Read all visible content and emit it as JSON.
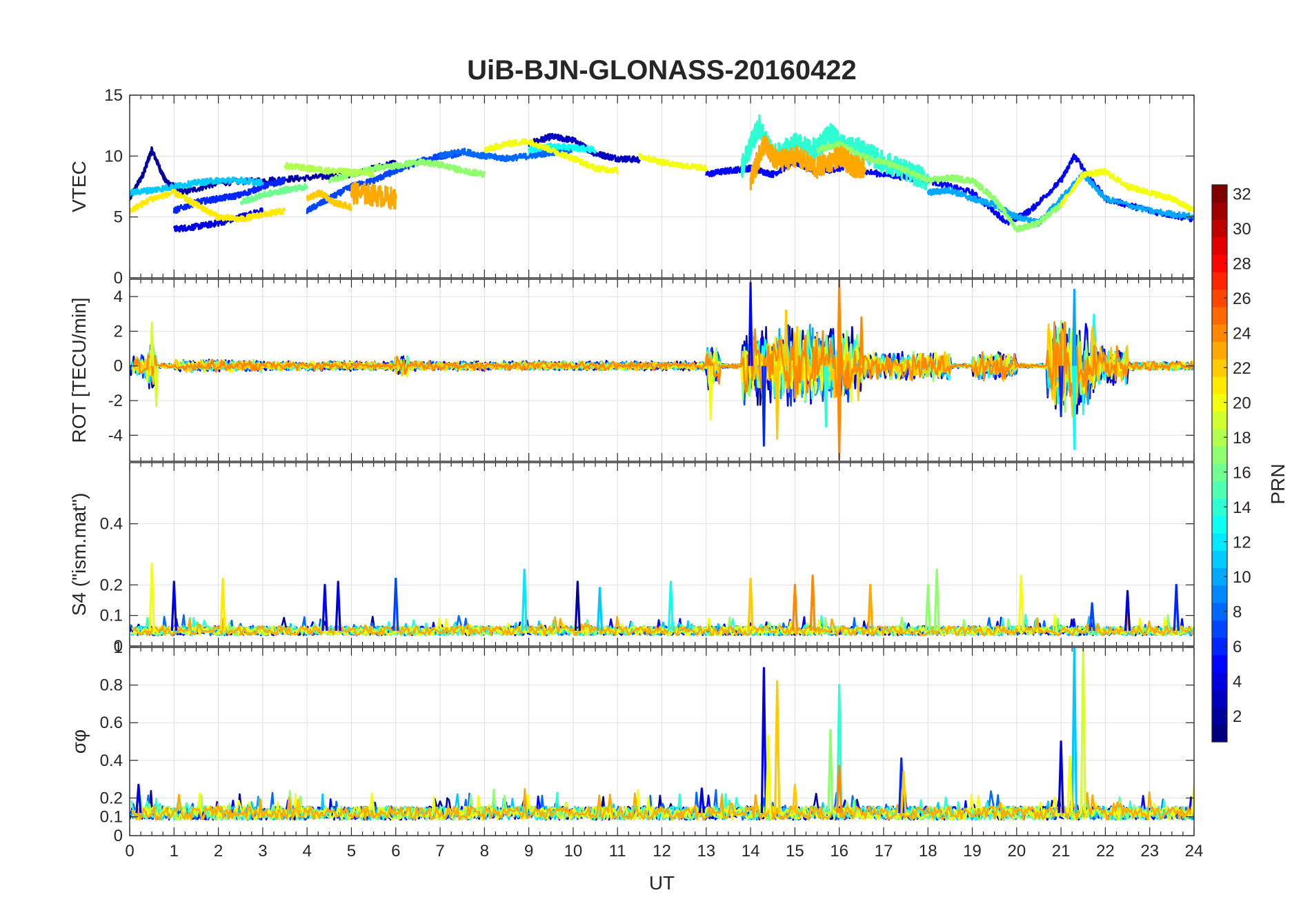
{
  "chart_data": {
    "type": "line",
    "title": "UiB-BJN-GLONASS-20160422",
    "xlabel": "UT",
    "xlim": [
      0,
      24
    ],
    "xticks": [
      "0",
      "1",
      "2",
      "3",
      "4",
      "5",
      "6",
      "7",
      "8",
      "9",
      "10",
      "11",
      "12",
      "13",
      "14",
      "15",
      "16",
      "17",
      "18",
      "19",
      "20",
      "21",
      "22",
      "23",
      "24"
    ],
    "grid": true,
    "panels": [
      {
        "name": "vtec",
        "ylabel": "VTEC",
        "ylim": [
          0,
          15
        ],
        "yticks": [
          0,
          5,
          10,
          15
        ],
        "ytick_labels": [
          "0",
          "5",
          "10",
          "15"
        ],
        "series": [
          {
            "prn": 2,
            "x": [
              0,
              0.3,
              0.5,
              0.8,
              1.2,
              2,
              3,
              4,
              5,
              6
            ],
            "y": [
              6.5,
              8.5,
              10.5,
              8,
              7,
              7.8,
              8,
              8.2,
              8.5,
              9.5
            ]
          },
          {
            "prn": 3,
            "x": [
              9,
              9.5,
              10,
              10.5,
              11,
              11.5
            ],
            "y": [
              11,
              11.6,
              11.3,
              10.2,
              9.8,
              9.7
            ]
          },
          {
            "prn": 4,
            "x": [
              1,
              1.5,
              2,
              2.5,
              3
            ],
            "y": [
              4,
              4.2,
              4.5,
              5,
              5.5
            ]
          },
          {
            "prn": 5,
            "x": [
              13,
              13.5,
              14,
              14.5,
              15,
              15.5,
              16,
              17,
              18,
              19,
              19.8,
              20.3,
              21,
              21.3,
              22,
              23,
              24
            ],
            "y": [
              8.5,
              8.8,
              9,
              8.5,
              9.5,
              8.7,
              9,
              8.5,
              8,
              7,
              4.5,
              5.5,
              8,
              10,
              6.5,
              5.5,
              4.8
            ]
          },
          {
            "prn": 6,
            "x": [
              1,
              1.5,
              2,
              2.5,
              3,
              3.5
            ],
            "y": [
              5.5,
              6.2,
              6.5,
              6.8,
              7.5,
              8
            ]
          },
          {
            "prn": 7,
            "x": [
              4,
              4.5,
              5,
              5.5,
              6,
              6.5,
              7,
              7.5
            ],
            "y": [
              5.5,
              6.5,
              7.5,
              8,
              8.8,
              9.5,
              10,
              10.2
            ]
          },
          {
            "prn": 8,
            "x": [
              7,
              7.5,
              8,
              8.5,
              9,
              9.5,
              10
            ],
            "y": [
              10,
              10.4,
              10,
              9.8,
              10,
              10.3,
              10.5
            ]
          },
          {
            "prn": 10,
            "x": [
              18,
              18.5,
              19,
              19.5,
              20,
              20.5,
              21,
              21.5,
              22,
              23,
              24
            ],
            "y": [
              7,
              7.2,
              6.5,
              6,
              5,
              4.5,
              6.5,
              8.5,
              6.5,
              5.5,
              5
            ]
          },
          {
            "prn": 11,
            "x": [
              0,
              0.5,
              1,
              1.5,
              2,
              2.5,
              3
            ],
            "y": [
              7,
              7.2,
              7.5,
              7.8,
              8,
              8,
              7.8
            ]
          },
          {
            "prn": 13,
            "x": [
              9,
              9.5,
              10,
              10.5
            ],
            "y": [
              10.5,
              10.8,
              10.7,
              10.5
            ]
          },
          {
            "prn": 14,
            "x": [
              13.8,
              14,
              14.2,
              14.5,
              15,
              15.5,
              15.8,
              16,
              16.5,
              17,
              17.5,
              18
            ],
            "y": [
              9,
              11,
              12.5,
              10,
              11,
              10.5,
              12,
              11,
              10.5,
              9.5,
              8.8,
              8
            ]
          },
          {
            "prn": 16,
            "x": [
              2.5,
              3,
              3.5,
              4
            ],
            "y": [
              6.2,
              6.8,
              7.2,
              7.5
            ]
          },
          {
            "prn": 17,
            "x": [
              4.5,
              5,
              5.5,
              6,
              6.5,
              7,
              7.5,
              8
            ],
            "y": [
              8,
              8.5,
              9,
              9.2,
              9.5,
              9.3,
              8.8,
              8.5
            ]
          },
          {
            "prn": 17,
            "x": [
              15.5,
              16,
              16.5,
              17,
              17.5,
              18,
              18.5,
              19,
              19.5,
              20,
              20.5,
              21
            ],
            "y": [
              10.5,
              11,
              10,
              9.5,
              8.8,
              8,
              8.2,
              8,
              6.5,
              4,
              4.5,
              6
            ]
          },
          {
            "prn": 18,
            "x": [
              3.5,
              4,
              4.5,
              5,
              5.5
            ],
            "y": [
              9.2,
              9,
              8.8,
              8.7,
              8.5
            ]
          },
          {
            "prn": 20,
            "x": [
              8,
              8.5,
              9,
              9.5,
              10,
              10.5,
              11
            ],
            "y": [
              10.5,
              11,
              11.2,
              10.5,
              9.8,
              9,
              8.8
            ]
          },
          {
            "prn": 20,
            "x": [
              11.5,
              12,
              12.5,
              13
            ],
            "y": [
              10,
              9.5,
              9.2,
              9
            ]
          },
          {
            "prn": 20,
            "x": [
              21,
              21.5,
              22,
              22.5,
              23,
              23.5,
              24
            ],
            "y": [
              6,
              8.5,
              8.7,
              7.5,
              7,
              6.5,
              5.5
            ]
          },
          {
            "prn": 21,
            "x": [
              0,
              0.5,
              1,
              1.5,
              2,
              2.5,
              3,
              3.5
            ],
            "y": [
              5.5,
              6.5,
              7,
              6,
              5,
              4.8,
              5.2,
              5.5
            ]
          },
          {
            "prn": 22,
            "x": [
              4,
              4.3,
              4.6,
              5
            ],
            "y": [
              6.5,
              7,
              6.2,
              5.8
            ]
          },
          {
            "prn": 23,
            "x": [
              14,
              14.3,
              14.6,
              15,
              15.5,
              16,
              16.3,
              16.6
            ],
            "y": [
              8,
              11,
              9.5,
              10,
              9,
              10,
              9.2,
              9
            ]
          },
          {
            "prn": 23,
            "x": [
              5,
              5.5,
              6
            ],
            "y": [
              7,
              6.8,
              6.5
            ]
          }
        ]
      },
      {
        "name": "rot",
        "ylabel": "ROT [TECU/min]",
        "ylim": [
          -5.5,
          5
        ],
        "yticks": [
          -4,
          -2,
          0,
          2,
          4
        ],
        "ytick_labels": [
          "-4",
          "-2",
          "0",
          "2",
          "4"
        ],
        "activity": [
          [
            0,
            0.5,
            0.8
          ],
          [
            0.4,
            0.6,
            1.5
          ],
          [
            1,
            3,
            0.4
          ],
          [
            3,
            13,
            0.3
          ],
          [
            6,
            6.3,
            0.8
          ],
          [
            13,
            13.3,
            1.5
          ],
          [
            13.8,
            14.2,
            2.5
          ],
          [
            14.2,
            16.5,
            2.5
          ],
          [
            16.5,
            18.5,
            0.9
          ],
          [
            19,
            20,
            0.9
          ],
          [
            20.7,
            21.8,
            3
          ],
          [
            21.8,
            22.5,
            1.2
          ],
          [
            22.5,
            24,
            0.3
          ]
        ],
        "spikes": [
          [
            14,
            4.8,
            5
          ],
          [
            14.3,
            -4.6,
            6
          ],
          [
            14.6,
            -4.2,
            22
          ],
          [
            14.8,
            3.2,
            22
          ],
          [
            16,
            5,
            24
          ],
          [
            16,
            -5.4,
            24
          ],
          [
            16.5,
            2.8,
            24
          ],
          [
            15.7,
            -3.5,
            14
          ],
          [
            21.3,
            4.4,
            10
          ],
          [
            21.3,
            -4.8,
            13
          ],
          [
            21,
            -2.9,
            6
          ],
          [
            13.1,
            -3.1,
            20
          ],
          [
            0.5,
            2.5,
            19
          ],
          [
            0.6,
            -2.3,
            19
          ]
        ]
      },
      {
        "name": "s4",
        "ylabel": "S4 (\"ism.mat\")",
        "ylim": [
          0,
          0.6
        ],
        "yticks": [
          0,
          0.1,
          0.2,
          0.4
        ],
        "ytick_labels": [
          "0",
          "0.1",
          "0.2",
          "0.4"
        ],
        "baseline": 0.05,
        "spikes": [
          [
            0.5,
            0.27,
            20
          ],
          [
            1,
            0.21,
            4
          ],
          [
            2.1,
            0.22,
            21
          ],
          [
            4.4,
            0.2,
            5
          ],
          [
            4.7,
            0.21,
            4
          ],
          [
            6,
            0.22,
            7
          ],
          [
            8.9,
            0.25,
            12
          ],
          [
            10.1,
            0.21,
            2
          ],
          [
            10.6,
            0.19,
            11
          ],
          [
            12.2,
            0.21,
            13
          ],
          [
            14,
            0.22,
            22
          ],
          [
            15,
            0.2,
            24
          ],
          [
            15.4,
            0.23,
            24
          ],
          [
            16.7,
            0.2,
            23
          ],
          [
            18,
            0.2,
            17
          ],
          [
            18.2,
            0.25,
            17
          ],
          [
            20.1,
            0.23,
            20
          ],
          [
            21.7,
            0.14,
            7
          ],
          [
            22.5,
            0.18,
            4
          ],
          [
            23.6,
            0.2,
            6
          ]
        ]
      },
      {
        "name": "sigma",
        "ylabel": "σφ",
        "ylim": [
          0,
          1
        ],
        "yticks": [
          0,
          0.1,
          0.2,
          0.4,
          0.6,
          0.8,
          1
        ],
        "ytick_labels": [
          "0",
          "0.1",
          "0.2",
          "0.4",
          "0.6",
          "0.8",
          "1"
        ],
        "baseline": 0.12,
        "spikes": [
          [
            14.3,
            0.89,
            4
          ],
          [
            14.4,
            0.53,
            20
          ],
          [
            14.6,
            0.82,
            22
          ],
          [
            15,
            0.27,
            22
          ],
          [
            15.8,
            0.56,
            17
          ],
          [
            16,
            0.8,
            14
          ],
          [
            16,
            0.37,
            24
          ],
          [
            17.4,
            0.41,
            6
          ],
          [
            17.45,
            0.34,
            22
          ],
          [
            21,
            0.5,
            4
          ],
          [
            21.3,
            1,
            11
          ],
          [
            21.5,
            1,
            19
          ],
          [
            21.2,
            0.42,
            20
          ],
          [
            0.2,
            0.27,
            4
          ],
          [
            3.8,
            0.19,
            22
          ],
          [
            12.9,
            0.25,
            4
          ],
          [
            24,
            0.27,
            20
          ]
        ]
      }
    ],
    "colorbar": {
      "label": "PRN",
      "range": [
        1,
        32
      ],
      "ticks": [
        2,
        4,
        6,
        8,
        10,
        12,
        14,
        16,
        18,
        20,
        22,
        24,
        26,
        28,
        30,
        32
      ],
      "colormap": "jet"
    }
  }
}
